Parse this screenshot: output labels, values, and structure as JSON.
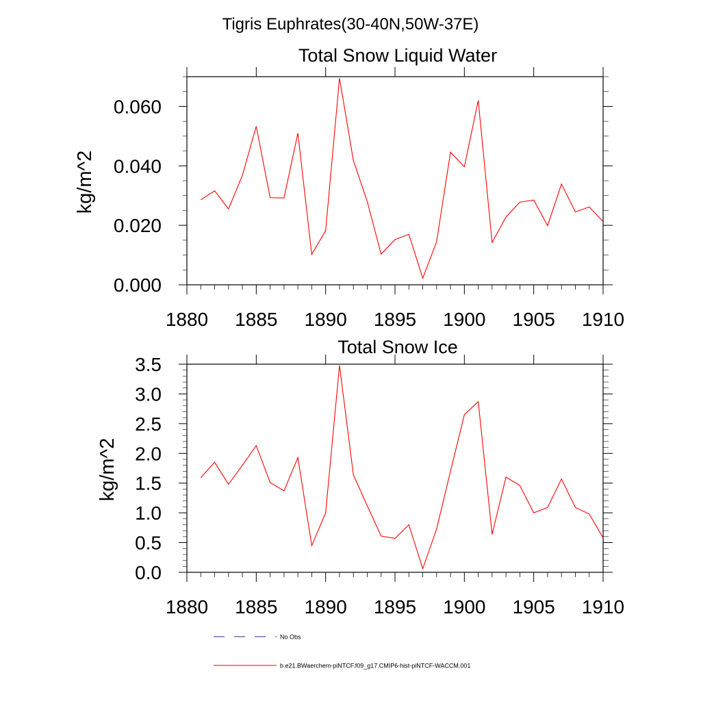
{
  "figure": {
    "suptitle": "Tigris Euphrates(30-40N,50W-37E)"
  },
  "legend": {
    "items": [
      {
        "label": "No Obs",
        "color": "#2a2a8a",
        "style": "dashed"
      },
      {
        "label": "b.e21.BWaerchem-piNTCF.f09_g17.CMIP6-hist-piNTCF-WACCM.001",
        "color": "#ff0000",
        "style": "solid"
      }
    ]
  },
  "chart_data": [
    {
      "type": "line",
      "title": "Total Snow Liquid Water",
      "xlabel": "",
      "ylabel": "kg/m^2",
      "xlim": [
        1880,
        1910
      ],
      "ylim": [
        0,
        0.07
      ],
      "xticks": [
        1880,
        1885,
        1890,
        1895,
        1900,
        1905,
        1910
      ],
      "yticks": [
        0,
        0.02,
        0.04,
        0.06
      ],
      "ytick_labels": [
        "0.000",
        "0.020",
        "0.040",
        "0.060"
      ],
      "grid": false,
      "x": [
        1881,
        1882,
        1883,
        1884,
        1885,
        1886,
        1887,
        1888,
        1889,
        1890,
        1891,
        1892,
        1893,
        1894,
        1895,
        1896,
        1897,
        1898,
        1899,
        1900,
        1901,
        1902,
        1903,
        1904,
        1905,
        1906,
        1907,
        1908,
        1909,
        1910
      ],
      "series": [
        {
          "color": "#ff0000",
          "values": [
            0.0286,
            0.0316,
            0.0255,
            0.0368,
            0.0533,
            0.0293,
            0.0292,
            0.051,
            0.0102,
            0.0182,
            0.0695,
            0.0418,
            0.028,
            0.0103,
            0.0152,
            0.017,
            0.0022,
            0.0145,
            0.0446,
            0.0397,
            0.062,
            0.0142,
            0.0228,
            0.0278,
            0.0285,
            0.0199,
            0.0339,
            0.0245,
            0.0262,
            0.0212
          ]
        }
      ]
    },
    {
      "type": "line",
      "title": "Total Snow Ice",
      "xlabel": "",
      "ylabel": "kg/m^2",
      "xlim": [
        1880,
        1910
      ],
      "ylim": [
        0,
        3.5
      ],
      "xticks": [
        1880,
        1885,
        1890,
        1895,
        1900,
        1905,
        1910
      ],
      "yticks": [
        0,
        0.5,
        1,
        1.5,
        2,
        2.5,
        3,
        3.5
      ],
      "ytick_labels": [
        "0.0",
        "0.5",
        "1.0",
        "1.5",
        "2.0",
        "2.5",
        "3.0",
        "3.5"
      ],
      "grid": false,
      "x": [
        1881,
        1882,
        1883,
        1884,
        1885,
        1886,
        1887,
        1888,
        1889,
        1890,
        1891,
        1892,
        1893,
        1894,
        1895,
        1896,
        1897,
        1898,
        1899,
        1900,
        1901,
        1902,
        1903,
        1904,
        1905,
        1906,
        1907,
        1908,
        1909,
        1910
      ],
      "series": [
        {
          "color": "#ff0000",
          "values": [
            1.59,
            1.85,
            1.48,
            1.8,
            2.13,
            1.51,
            1.37,
            1.93,
            0.45,
            1.0,
            3.48,
            1.64,
            1.12,
            0.61,
            0.57,
            0.8,
            0.06,
            0.73,
            1.7,
            2.65,
            2.87,
            0.64,
            1.6,
            1.46,
            1.0,
            1.09,
            1.57,
            1.09,
            0.98,
            0.58
          ]
        }
      ]
    }
  ]
}
